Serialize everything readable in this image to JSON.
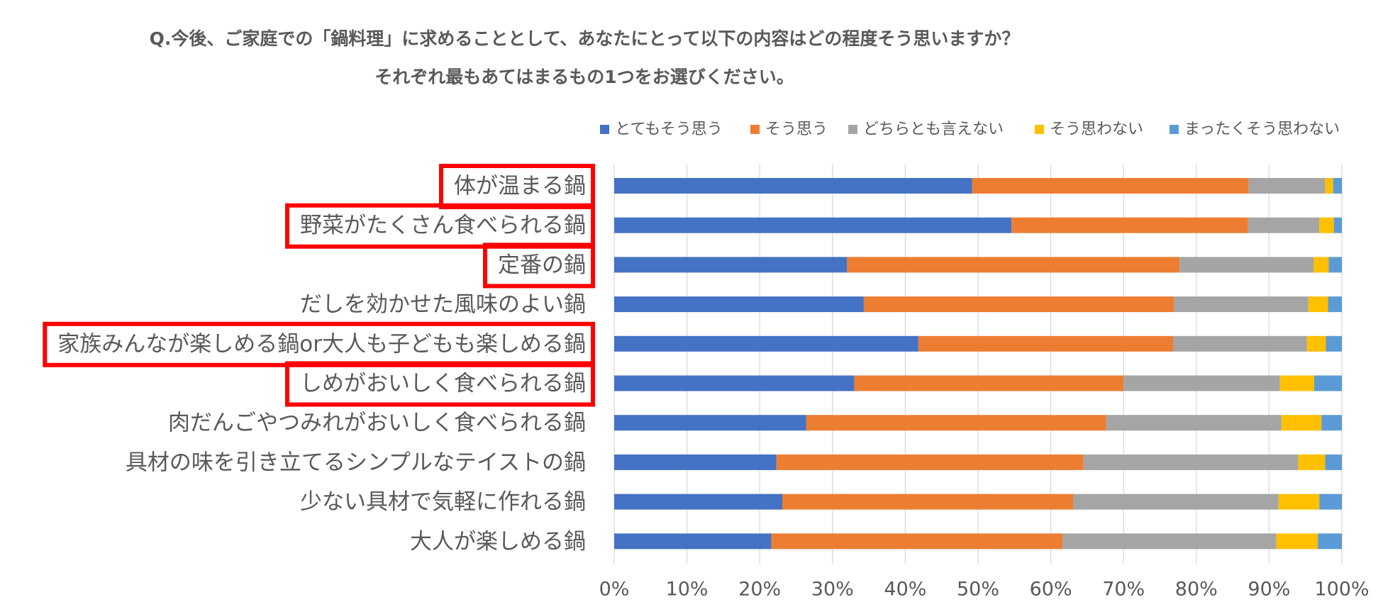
{
  "chart_data": {
    "type": "bar",
    "orientation": "horizontal",
    "stacked": "percent",
    "title": [
      "Q.今後、ご家庭での「鍋料理」に求めることとして、あなたにとって以下の内容はどの程度そう思いますか？",
      "それぞれ最もあてはまるもの1つをお選びください。"
    ],
    "legend_position": "top-right",
    "xlim": [
      0,
      100
    ],
    "x_ticks": [
      "0%",
      "10%",
      "20%",
      "30%",
      "40%",
      "50%",
      "60%",
      "70%",
      "80%",
      "90%",
      "100%"
    ],
    "grid": "vertical",
    "categories": [
      "体が温まる鍋",
      "野菜がたくさん食べられる鍋",
      "定番の鍋",
      "だしを効かせた風味のよい鍋",
      "家族みんなが楽しめる鍋or大人も子どもも楽しめる鍋",
      "しめがおいしく食べられる鍋",
      "肉だんごやつみれがおいしく食べられる鍋",
      "具材の味を引き立てるシンプルなテイストの鍋",
      "少ない具材で気軽に作れる鍋",
      "大人が楽しめる鍋"
    ],
    "highlighted_categories": [
      0,
      1,
      2,
      4,
      5
    ],
    "highlight_color": "#ff0000",
    "series": [
      {
        "name": "とてもそう思う",
        "color": "#4472c4",
        "values": [
          49.2,
          54.6,
          32.0,
          34.3,
          41.8,
          33.0,
          26.4,
          22.3,
          23.1,
          21.6
        ]
      },
      {
        "name": "そう思う",
        "color": "#ed7d31",
        "values": [
          38.0,
          32.5,
          45.7,
          42.6,
          35.0,
          37.0,
          41.2,
          42.2,
          40.0,
          40.0
        ]
      },
      {
        "name": "どちらとも言えない",
        "color": "#a5a5a5",
        "values": [
          10.5,
          9.8,
          18.4,
          18.5,
          18.4,
          21.5,
          24.1,
          29.5,
          28.2,
          29.4
        ]
      },
      {
        "name": "そう思わない",
        "color": "#ffc000",
        "values": [
          1.1,
          2.0,
          2.1,
          2.7,
          2.6,
          4.7,
          5.5,
          3.7,
          5.6,
          5.7
        ]
      },
      {
        "name": "まったくそう思わない",
        "color": "#5b9bd5",
        "values": [
          1.2,
          1.1,
          1.8,
          1.9,
          2.2,
          3.8,
          2.8,
          2.3,
          3.1,
          3.3
        ]
      }
    ]
  }
}
